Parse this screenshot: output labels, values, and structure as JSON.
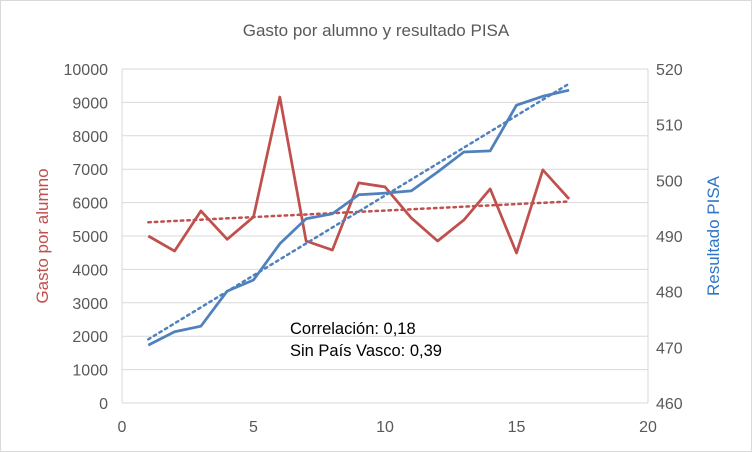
{
  "chart_data": {
    "type": "line",
    "title": "Gasto por alumno y resultado PISA",
    "xlabel": "",
    "ylabel": "Gasto por alumno",
    "y2label": "Resultado PISA",
    "xlim": [
      0,
      20
    ],
    "ylim": [
      0,
      10000
    ],
    "y2lim": [
      460,
      520
    ],
    "xticks": [
      0,
      5,
      10,
      15,
      20
    ],
    "yticks": [
      0,
      1000,
      2000,
      3000,
      4000,
      5000,
      6000,
      7000,
      8000,
      9000,
      10000
    ],
    "y2ticks": [
      460,
      470,
      480,
      490,
      500,
      510,
      520
    ],
    "grid": true,
    "x": [
      1,
      2,
      3,
      4,
      5,
      6,
      7,
      8,
      9,
      10,
      11,
      12,
      13,
      14,
      15,
      16,
      17
    ],
    "series": [
      {
        "name": "Gasto por alumno",
        "axis": "left",
        "color": "#c0504d",
        "values": [
          5000,
          4550,
          5750,
          4900,
          5570,
          9160,
          4850,
          4580,
          6590,
          6470,
          5540,
          4850,
          5480,
          6410,
          4490,
          6980,
          6110
        ],
        "trendline": "linear"
      },
      {
        "name": "Resultado PISA",
        "axis": "right",
        "color": "#4f81bd",
        "values": [
          470.4,
          472.8,
          473.8,
          480.1,
          482.1,
          488.6,
          493.1,
          494.0,
          497.4,
          497.7,
          498.1,
          501.5,
          505.1,
          505.3,
          513.5,
          515.1,
          516.2
        ],
        "trendline": "linear"
      }
    ],
    "annotations": [
      "Correlación: 0,18",
      "Sin País Vasco: 0,39"
    ]
  }
}
